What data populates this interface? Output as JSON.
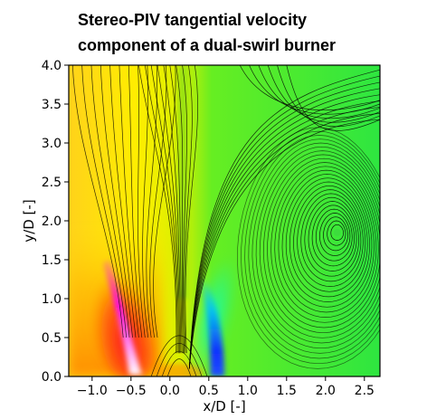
{
  "chart_data": {
    "type": "heatmap",
    "title_lines": [
      "Stereo-PIV tangential velocity",
      "component of a dual-swirl burner"
    ],
    "xlabel": "x/D [-]",
    "ylabel": "y/D [-]",
    "xlim": [
      -1.3,
      2.7
    ],
    "ylim": [
      0.0,
      4.0
    ],
    "xticks": [
      -1.0,
      -0.5,
      0.0,
      0.5,
      1.0,
      1.5,
      2.0,
      2.5
    ],
    "xtick_labels": [
      "−1.0",
      "−0.5",
      "0.0",
      "0.5",
      "1.0",
      "1.5",
      "2.0",
      "2.5"
    ],
    "yticks": [
      0.0,
      0.5,
      1.0,
      1.5,
      2.0,
      2.5,
      3.0,
      3.5,
      4.0
    ],
    "ytick_labels": [
      "0.0",
      "0.5",
      "1.0",
      "1.5",
      "2.0",
      "2.5",
      "3.0",
      "3.5",
      "4.0"
    ],
    "colormap": [
      "#ff00ff",
      "#ff0000",
      "#ffa500",
      "#ffff00",
      "#00ff00",
      "#00ffff",
      "#0000ff"
    ],
    "streamline_color": "#000000",
    "vortex_center": [
      2.15,
      1.85
    ],
    "grid": false
  }
}
